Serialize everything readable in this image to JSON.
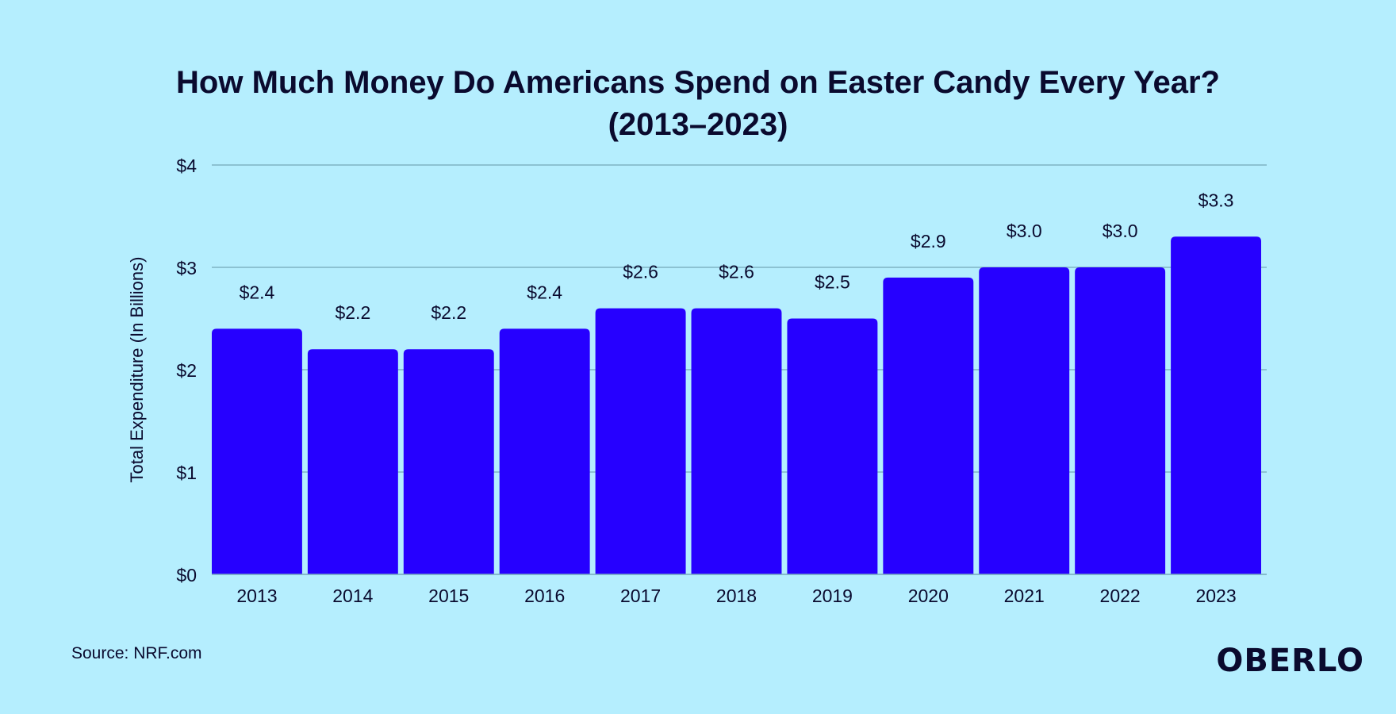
{
  "chart_data": {
    "type": "bar",
    "title": "How Much Money Do Americans Spend on Easter Candy Every Year?",
    "subtitle": "(2013–2023)",
    "xlabel": "",
    "ylabel": "Total Expenditure (In Billions)",
    "categories": [
      "2013",
      "2014",
      "2015",
      "2016",
      "2017",
      "2018",
      "2019",
      "2020",
      "2021",
      "2022",
      "2023"
    ],
    "values": [
      2.4,
      2.2,
      2.2,
      2.4,
      2.6,
      2.6,
      2.5,
      2.9,
      3.0,
      3.0,
      3.3
    ],
    "data_labels": [
      "$2.4",
      "$2.2",
      "$2.2",
      "$2.4",
      "$2.6",
      "$2.6",
      "$2.5",
      "$2.9",
      "$3.0",
      "$3.0",
      "$3.3"
    ],
    "ylim": [
      0,
      4
    ],
    "yticks": [
      0,
      1,
      2,
      3,
      4
    ],
    "ytick_labels": [
      "$0",
      "$1",
      "$2",
      "$3",
      "$4"
    ],
    "grid": true,
    "bar_color": "#2600ff",
    "background_color": "#b5eefe",
    "grid_color": "#7fb3c4"
  },
  "footer": {
    "source": "Source: NRF.com",
    "logo": "OBERLO"
  }
}
